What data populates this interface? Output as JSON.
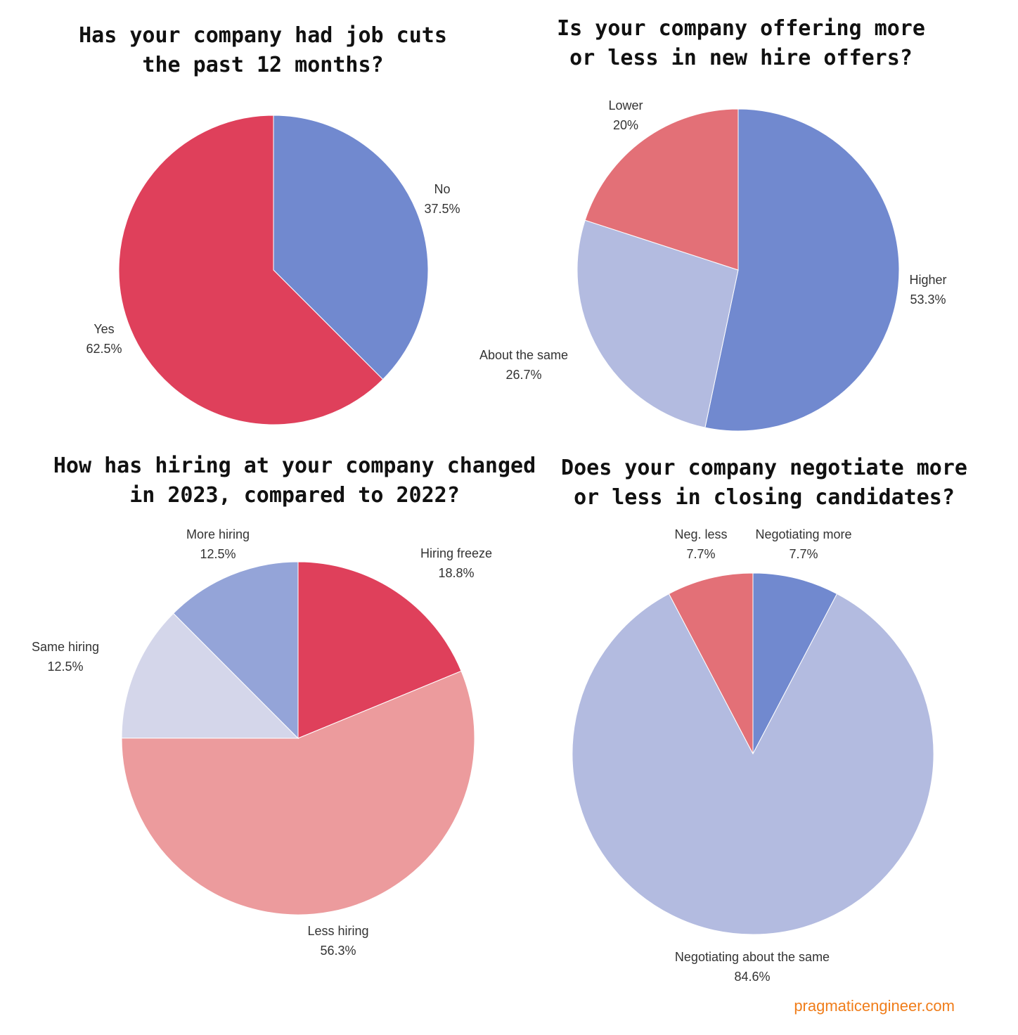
{
  "chart_data": [
    {
      "type": "pie",
      "title": "Has your company had job cuts the past 12 months?",
      "title_lines": [
        "Has your company had job cuts",
        "the past 12 months?"
      ],
      "slices": [
        {
          "label": "No",
          "value": 37.5,
          "value_label": "37.5%",
          "color": "#7189cf"
        },
        {
          "label": "Yes",
          "value": 62.5,
          "value_label": "62.5%",
          "color": "#df405b"
        }
      ]
    },
    {
      "type": "pie",
      "title": "Is your company offering more or less in new hire offers?",
      "title_lines": [
        "Is your company offering more",
        "or less in new hire offers?"
      ],
      "slices": [
        {
          "label": "Higher",
          "value": 53.3,
          "value_label": "53.3%",
          "color": "#7189cf"
        },
        {
          "label": "About the same",
          "value": 26.7,
          "value_label": "26.7%",
          "color": "#b3bbe0"
        },
        {
          "label": "Lower",
          "value": 20,
          "value_label": "20%",
          "color": "#e37077"
        }
      ]
    },
    {
      "type": "pie",
      "title": "How has hiring at your company changed in 2023, compared to 2022?",
      "title_lines": [
        "How has hiring at your company changed",
        "in 2023, compared to 2022?"
      ],
      "slices": [
        {
          "label": "Hiring freeze",
          "value": 18.8,
          "value_label": "18.8%",
          "color": "#df405b"
        },
        {
          "label": "Less hiring",
          "value": 56.3,
          "value_label": "56.3%",
          "color": "#ec9b9d"
        },
        {
          "label": "Same hiring",
          "value": 12.5,
          "value_label": "12.5%",
          "color": "#d4d6ea"
        },
        {
          "label": "More hiring",
          "value": 12.5,
          "value_label": "12.5%",
          "color": "#94a4d8"
        }
      ]
    },
    {
      "type": "pie",
      "title": "Does your company negotiate more or less in closing candidates?",
      "title_lines": [
        "Does your company negotiate more",
        "or less in closing candidates?"
      ],
      "slices": [
        {
          "label": "Negotiating more",
          "value": 7.7,
          "value_label": "7.7%",
          "color": "#7189cf"
        },
        {
          "label": "Negotiating about the same",
          "value": 84.6,
          "value_label": "84.6%",
          "color": "#b3bbe0"
        },
        {
          "label": "Neg. less",
          "value": 7.7,
          "value_label": "7.7%",
          "color": "#e37077"
        }
      ]
    }
  ],
  "watermark": "pragmaticengineer.com"
}
